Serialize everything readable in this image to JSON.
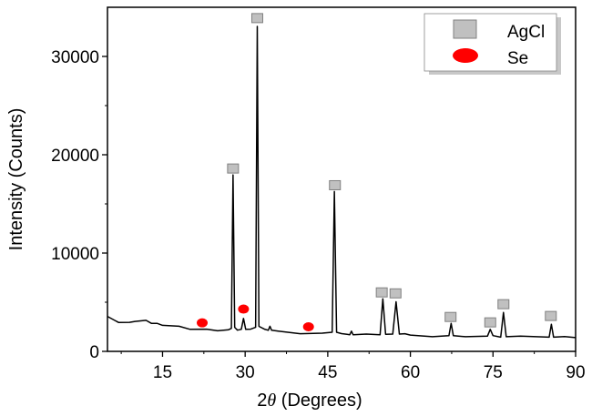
{
  "chart_data": {
    "type": "line",
    "title": "",
    "xlabel_prefix": "2",
    "xlabel_symbol": "θ",
    "xlabel_suffix": " (Degrees)",
    "ylabel": "Intensity (Counts)",
    "xlim": [
      5,
      90
    ],
    "ylim": [
      0,
      35000
    ],
    "xticks": [
      15,
      30,
      45,
      60,
      75,
      90
    ],
    "yticks": [
      0,
      10000,
      20000,
      30000
    ],
    "grid": false,
    "legend_position": "top-right",
    "series": [
      {
        "color": "#000000",
        "x": [
          5,
          7,
          9,
          10,
          12,
          13,
          14,
          15,
          18,
          20,
          23,
          25,
          27,
          27.5,
          27.8,
          28.1,
          28.6,
          29.3,
          29.7,
          30.1,
          31,
          31.9,
          32.2,
          32.5,
          33.5,
          34.2,
          34.5,
          34.8,
          36,
          40,
          44,
          45.8,
          46.2,
          46.6,
          47.5,
          49,
          49.3,
          49.6,
          52,
          54.5,
          55,
          55.5,
          56.8,
          57.4,
          58,
          59,
          60,
          64,
          67,
          67.4,
          67.8,
          70,
          74,
          74.5,
          75,
          76.4,
          76.9,
          77.4,
          80,
          85.2,
          85.6,
          86,
          88,
          90
        ],
        "y": [
          3500,
          3000,
          2900,
          3100,
          3100,
          2900,
          2800,
          2700,
          2500,
          2300,
          2200,
          2150,
          2150,
          2400,
          17900,
          2500,
          2100,
          2300,
          3300,
          2300,
          2200,
          2500,
          33000,
          2600,
          2200,
          2200,
          2500,
          2200,
          2000,
          1850,
          1800,
          2000,
          16200,
          2000,
          1750,
          1750,
          2000,
          1750,
          1700,
          1750,
          5300,
          1800,
          1700,
          5100,
          1700,
          1850,
          1600,
          1550,
          1550,
          2900,
          1550,
          1550,
          1500,
          2300,
          1550,
          1500,
          3900,
          1550,
          1500,
          1500,
          2700,
          1500,
          1450,
          1450
        ]
      }
    ],
    "markers": {
      "AgCl": {
        "label": "AgCl",
        "shape": "square",
        "color": "#c0c0c0",
        "points": [
          [
            27.8,
            18600
          ],
          [
            32.2,
            33900
          ],
          [
            46.3,
            16900
          ],
          [
            54.8,
            6000
          ],
          [
            57.3,
            5900
          ],
          [
            67.3,
            3500
          ],
          [
            74.5,
            2950
          ],
          [
            76.9,
            4800
          ],
          [
            85.5,
            3600
          ]
        ]
      },
      "Se": {
        "label": "Se",
        "shape": "ellipse",
        "color": "#ff0000",
        "points": [
          [
            22.2,
            2900
          ],
          [
            29.7,
            4300
          ],
          [
            41.5,
            2500
          ]
        ]
      }
    }
  }
}
